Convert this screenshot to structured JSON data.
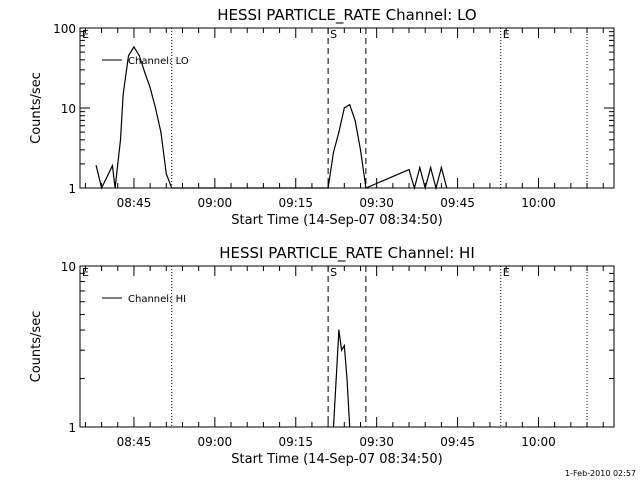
{
  "chart_data": [
    {
      "type": "line",
      "title": "HESSI PARTICLE_RATE Channel: LO",
      "xlabel": "Start Time (14-Sep-07 08:34:50)",
      "ylabel": "Counts/sec",
      "yscale": "log",
      "xlim": [
        "08:35",
        "10:14"
      ],
      "ylim": [
        1,
        100
      ],
      "x_tick_labels": [
        "08:45",
        "09:00",
        "09:15",
        "09:30",
        "09:45",
        "10:00"
      ],
      "y_tick_labels": [
        "1",
        "10",
        "100"
      ],
      "legend": {
        "position": "top-left",
        "entries": [
          "Channel: LO"
        ]
      },
      "series": [
        {
          "name": "Channel: LO",
          "x": [
            "08:38",
            "08:39",
            "08:41",
            "08:41.5",
            "08:42",
            "08:42.5",
            "08:43",
            "08:44",
            "08:45",
            "08:46",
            "08:47",
            "08:48",
            "08:49",
            "08:50",
            "08:51",
            "08:52",
            "09:21",
            "09:22",
            "09:23",
            "09:24",
            "09:25",
            "09:26",
            "09:27",
            "09:28",
            "09:36",
            "09:37",
            "09:38",
            "09:39",
            "09:40",
            "09:41",
            "09:42",
            "09:43"
          ],
          "y": [
            1.9,
            1,
            1.9,
            1,
            2.0,
            4.0,
            15,
            45,
            58,
            45,
            28,
            18,
            10,
            5,
            1.5,
            1,
            1,
            2.8,
            5,
            10,
            11,
            7,
            3,
            1,
            1.7,
            1,
            1.8,
            1,
            1.8,
            1,
            1.8,
            1
          ]
        }
      ],
      "markers": [
        {
          "style": "dotted",
          "x": "08:35",
          "label": "E"
        },
        {
          "style": "dotted",
          "x": "08:52"
        },
        {
          "style": "dashed",
          "x": "09:21",
          "label": "S"
        },
        {
          "style": "dashed",
          "x": "09:28"
        },
        {
          "style": "dotted",
          "x": "09:53",
          "label": "E"
        },
        {
          "style": "dotted",
          "x": "10:09"
        }
      ]
    },
    {
      "type": "line",
      "title": "HESSI PARTICLE_RATE Channel: HI",
      "xlabel": "Start Time (14-Sep-07 08:34:50)",
      "ylabel": "Counts/sec",
      "yscale": "log",
      "xlim": [
        "08:35",
        "10:14"
      ],
      "ylim": [
        1,
        10
      ],
      "x_tick_labels": [
        "08:45",
        "09:00",
        "09:15",
        "09:30",
        "09:45",
        "10:00"
      ],
      "y_tick_labels": [
        "1",
        "10"
      ],
      "legend": {
        "position": "top-left",
        "entries": [
          "Channel: HI"
        ]
      },
      "series": [
        {
          "name": "Channel: HI",
          "x": [
            "09:22",
            "09:22.5",
            "09:23",
            "09:23.5",
            "09:24",
            "09:24.5",
            "09:25"
          ],
          "y": [
            1,
            2.0,
            4.0,
            3.0,
            3.2,
            2.0,
            1
          ]
        }
      ],
      "markers": [
        {
          "style": "dotted",
          "x": "08:35",
          "label": "E"
        },
        {
          "style": "dotted",
          "x": "08:52"
        },
        {
          "style": "dashed",
          "x": "09:21",
          "label": "S"
        },
        {
          "style": "dashed",
          "x": "09:28"
        },
        {
          "style": "dotted",
          "x": "09:53",
          "label": "E"
        },
        {
          "style": "dotted",
          "x": "10:09"
        }
      ]
    }
  ],
  "footer": {
    "stamp": "1-Feb-2010 02:57"
  }
}
